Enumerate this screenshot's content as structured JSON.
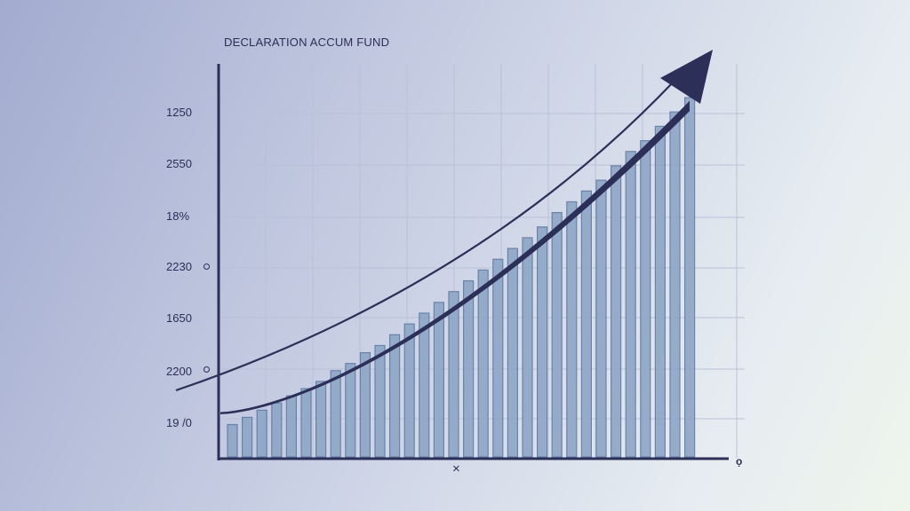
{
  "chart_data": {
    "type": "bar",
    "title": "DECLARATION ACCUM FUND",
    "y_tick_labels": [
      "1250",
      "2550",
      "18%",
      "2230",
      "1650",
      "2200",
      "19 /0"
    ],
    "x_marker": "×",
    "x_end_marker": "ọ",
    "values": [
      0.09,
      0.11,
      0.13,
      0.15,
      0.17,
      0.19,
      0.21,
      0.24,
      0.26,
      0.29,
      0.31,
      0.34,
      0.37,
      0.4,
      0.43,
      0.46,
      0.49,
      0.52,
      0.55,
      0.58,
      0.61,
      0.64,
      0.68,
      0.71,
      0.74,
      0.77,
      0.81,
      0.85,
      0.88,
      0.92,
      0.96,
      1.0
    ],
    "ylim": [
      0,
      1
    ],
    "grid": true,
    "trend_arrow": true,
    "colors": {
      "bar_fill": "#8ea6c6",
      "bar_stroke": "#5f7aa3",
      "axis": "#2c2f58",
      "trend": "#2c2f58"
    }
  }
}
